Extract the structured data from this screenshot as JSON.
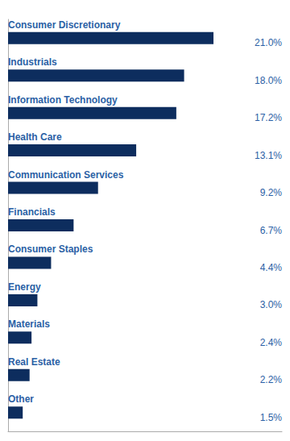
{
  "chart_data": {
    "type": "bar",
    "orientation": "horizontal",
    "categories": [
      "Consumer Discretionary",
      "Industrials",
      "Information Technology",
      "Health Care",
      "Communication Services",
      "Financials",
      "Consumer Staples",
      "Energy",
      "Materials",
      "Real Estate",
      "Other"
    ],
    "values": [
      21.0,
      18.0,
      17.2,
      13.1,
      9.2,
      6.7,
      4.4,
      3.0,
      2.4,
      2.2,
      1.5
    ],
    "value_labels": [
      "21.0%",
      "18.0%",
      "17.2%",
      "13.1%",
      "9.2%",
      "6.7%",
      "4.4%",
      "3.0%",
      "2.4%",
      "2.2%",
      "1.5%"
    ],
    "data_labels": true,
    "color": "#0d2d5e",
    "xlim": [
      0,
      28
    ],
    "grid": false,
    "tick_labels": false
  }
}
